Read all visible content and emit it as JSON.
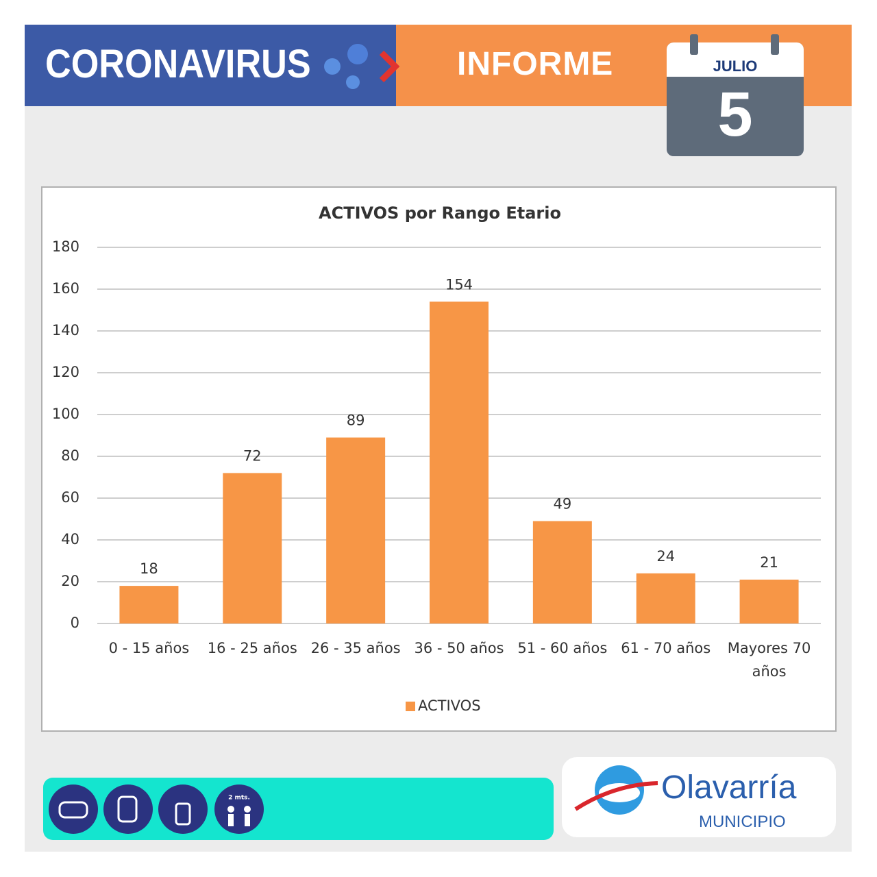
{
  "header": {
    "title": "CORONAVIRUS",
    "report": "INFORME",
    "month": "JULIO",
    "day": "5"
  },
  "chart_data": {
    "type": "bar",
    "title": "ACTIVOS por Rango Etario",
    "categories": [
      "0 - 15 años",
      "16 - 25 años",
      "26 - 35 años",
      "36 - 50 años",
      "51 - 60 años",
      "61 - 70 años",
      "Mayores 70 años"
    ],
    "series": [
      {
        "name": "ACTIVOS",
        "color": "#f79646",
        "values": [
          18,
          72,
          89,
          154,
          49,
          24,
          21
        ]
      }
    ],
    "ylim": [
      0,
      180
    ],
    "yticks": [
      0,
      20,
      40,
      60,
      80,
      100,
      120,
      140,
      160,
      180
    ],
    "grid": true,
    "legend": "bottom"
  },
  "footer": {
    "distance_label": "2 mts.",
    "logo_name": "Olavarría",
    "logo_sub": "MUNICIPIO"
  }
}
